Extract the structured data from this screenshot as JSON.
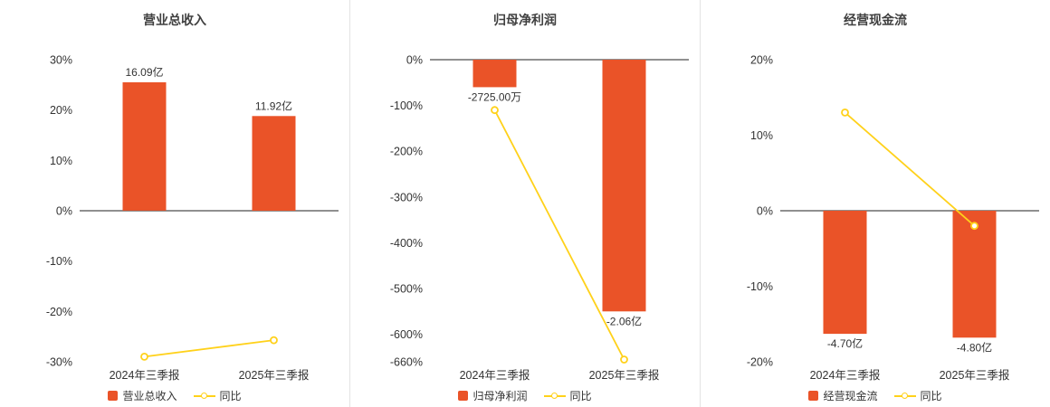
{
  "colors": {
    "bar": "#ea5328",
    "line": "#ffd11a",
    "zero_line": "#4d4d4d"
  },
  "chart_data": [
    {
      "type": "bar",
      "title": "营业总收入",
      "categories": [
        "2024年三季报",
        "2025年三季报"
      ],
      "bars": {
        "name": "营业总收入",
        "values_display": [
          "16.09亿",
          "11.92亿"
        ],
        "axis_values": [
          25.5,
          18.8
        ]
      },
      "line": {
        "name": "同比",
        "values": [
          -29,
          -25.7
        ]
      },
      "ylim": [
        -30,
        30
      ],
      "ytick_values": [
        30,
        20,
        10,
        0,
        -10,
        -20,
        -30
      ],
      "ytick_labels": [
        "30%",
        "20%",
        "10%",
        "0%",
        "-10%",
        "-20%",
        "-30%"
      ],
      "grid": false,
      "legend_position": "bottom"
    },
    {
      "type": "bar",
      "title": "归母净利润",
      "categories": [
        "2024年三季报",
        "2025年三季报"
      ],
      "bars": {
        "name": "归母净利润",
        "values_display": [
          "-2725.00万",
          "-2.06亿"
        ],
        "axis_values": [
          -60,
          -550
        ]
      },
      "line": {
        "name": "同比",
        "values": [
          -110,
          -655
        ]
      },
      "ylim": [
        -660,
        0
      ],
      "ytick_values": [
        0,
        -100,
        -200,
        -300,
        -400,
        -500,
        -600,
        -660
      ],
      "ytick_labels": [
        "0%",
        "-100%",
        "-200%",
        "-300%",
        "-400%",
        "-500%",
        "-600%",
        "-660%"
      ],
      "grid": false,
      "legend_position": "bottom"
    },
    {
      "type": "bar",
      "title": "经营现金流",
      "categories": [
        "2024年三季报",
        "2025年三季报"
      ],
      "bars": {
        "name": "经营现金流",
        "values_display": [
          "-4.70亿",
          "-4.80亿"
        ],
        "axis_values": [
          -16.3,
          -16.8
        ]
      },
      "line": {
        "name": "同比",
        "values": [
          13,
          -2
        ]
      },
      "ylim": [
        -20,
        20
      ],
      "ytick_values": [
        20,
        10,
        0,
        -10,
        -20
      ],
      "ytick_labels": [
        "20%",
        "10%",
        "0%",
        "-10%",
        "-20%"
      ],
      "grid": false,
      "legend_position": "bottom"
    }
  ]
}
